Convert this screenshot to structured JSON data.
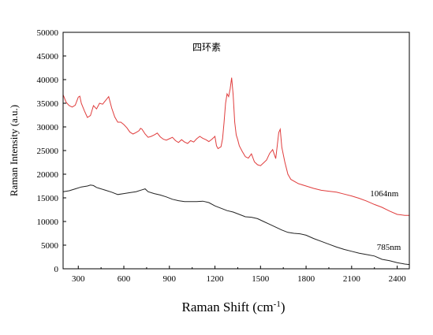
{
  "chart_data": {
    "type": "line",
    "title": "四环素",
    "xlabel": "Raman Shift (cm",
    "xlabel_sup": "-1",
    "xlabel_close": ")",
    "ylabel": "Raman Intensity (a.u.)",
    "xlim": [
      200,
      2480
    ],
    "ylim": [
      0,
      50000
    ],
    "x_ticks": [
      300,
      600,
      900,
      1200,
      1500,
      1800,
      2100,
      2400
    ],
    "y_ticks": [
      0,
      5000,
      10000,
      15000,
      20000,
      25000,
      30000,
      35000,
      40000,
      45000,
      50000
    ],
    "grid": false,
    "series": [
      {
        "name": "1064nm",
        "color": "#e03c3c",
        "x": [
          200,
          220,
          240,
          260,
          280,
          300,
          310,
          320,
          340,
          360,
          380,
          400,
          420,
          440,
          460,
          480,
          500,
          510,
          520,
          540,
          560,
          580,
          600,
          620,
          640,
          660,
          680,
          700,
          710,
          720,
          740,
          760,
          780,
          800,
          820,
          840,
          860,
          880,
          900,
          920,
          940,
          960,
          980,
          1000,
          1020,
          1040,
          1060,
          1080,
          1100,
          1120,
          1140,
          1160,
          1180,
          1200,
          1210,
          1220,
          1240,
          1250,
          1260,
          1270,
          1280,
          1290,
          1300,
          1310,
          1320,
          1330,
          1340,
          1350,
          1360,
          1380,
          1400,
          1420,
          1440,
          1460,
          1480,
          1500,
          1520,
          1540,
          1560,
          1580,
          1600,
          1610,
          1620,
          1630,
          1640,
          1660,
          1680,
          1700,
          1750,
          1800,
          1850,
          1900,
          1950,
          2000,
          2050,
          2100,
          2150,
          2200,
          2250,
          2300,
          2350,
          2400,
          2450,
          2480
        ],
        "y": [
          36800,
          35200,
          34500,
          34200,
          34600,
          36300,
          36500,
          35000,
          33400,
          32000,
          32400,
          34500,
          33800,
          35000,
          34800,
          35600,
          36400,
          35200,
          34000,
          32100,
          31000,
          31000,
          30500,
          29800,
          28900,
          28500,
          28800,
          29200,
          29700,
          29500,
          28500,
          27800,
          28000,
          28300,
          28700,
          27900,
          27400,
          27200,
          27500,
          27800,
          27100,
          26700,
          27300,
          26800,
          26500,
          27100,
          26800,
          27500,
          28000,
          27600,
          27300,
          26900,
          27400,
          28000,
          26000,
          25400,
          25800,
          27500,
          31000,
          35000,
          37000,
          36400,
          38000,
          40400,
          36800,
          31000,
          28300,
          27300,
          26000,
          24800,
          23700,
          23400,
          24300,
          22600,
          22000,
          21800,
          22400,
          23000,
          24400,
          25200,
          23300,
          26000,
          28800,
          29500,
          25700,
          22600,
          20000,
          18900,
          18000,
          17500,
          17000,
          16600,
          16400,
          16200,
          15800,
          15400,
          14900,
          14300,
          13600,
          13000,
          12200,
          11500,
          11300,
          11300
        ]
      },
      {
        "name": "785nm",
        "color": "#222222",
        "x": [
          200,
          240,
          280,
          320,
          360,
          380,
          400,
          420,
          440,
          480,
          520,
          560,
          600,
          640,
          680,
          720,
          740,
          760,
          800,
          840,
          880,
          920,
          960,
          1000,
          1040,
          1080,
          1120,
          1160,
          1200,
          1240,
          1280,
          1320,
          1360,
          1400,
          1440,
          1480,
          1520,
          1560,
          1600,
          1640,
          1680,
          1720,
          1760,
          1800,
          1850,
          1900,
          1950,
          2000,
          2050,
          2100,
          2150,
          2200,
          2250,
          2300,
          2350,
          2400,
          2450,
          2480
        ],
        "y": [
          16300,
          16500,
          16900,
          17300,
          17500,
          17700,
          17600,
          17200,
          17000,
          16600,
          16200,
          15700,
          15900,
          16100,
          16300,
          16700,
          16900,
          16300,
          15900,
          15600,
          15200,
          14700,
          14400,
          14200,
          14200,
          14200,
          14300,
          14000,
          13300,
          12800,
          12300,
          12000,
          11500,
          11000,
          10900,
          10600,
          10000,
          9400,
          8800,
          8200,
          7700,
          7500,
          7400,
          7100,
          6400,
          5800,
          5200,
          4600,
          4100,
          3700,
          3300,
          3000,
          2700,
          2000,
          1700,
          1300,
          1000,
          900
        ]
      }
    ],
    "annotations": [
      {
        "text": "1064nm",
        "x": 2315,
        "y": 15300
      },
      {
        "text": "785nm",
        "x": 2345,
        "y": 4000
      }
    ]
  }
}
